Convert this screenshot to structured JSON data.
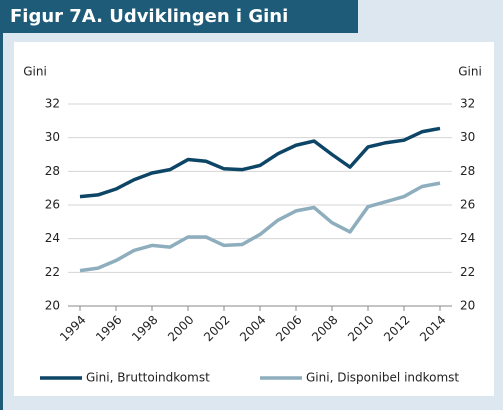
{
  "chart_data": {
    "type": "line",
    "title": "Figur 7A. Udviklingen i Gini",
    "ylabel": "Gini",
    "y2label": "Gini",
    "x": [
      1994,
      1995,
      1996,
      1997,
      1998,
      1999,
      2000,
      2001,
      2002,
      2003,
      2004,
      2005,
      2006,
      2007,
      2008,
      2009,
      2010,
      2011,
      2012,
      2013,
      2014
    ],
    "series": [
      {
        "name": "Gini, Bruttoindkomst",
        "color": "#0d4566",
        "values": [
          26.5,
          26.6,
          26.95,
          27.5,
          27.9,
          28.1,
          28.7,
          28.6,
          28.15,
          28.1,
          28.35,
          29.05,
          29.55,
          29.8,
          29.0,
          28.25,
          29.45,
          29.7,
          29.85,
          30.35,
          30.55
        ]
      },
      {
        "name": "Gini, Disponibel indkomst",
        "color": "#8eaebe",
        "values": [
          22.1,
          22.25,
          22.7,
          23.3,
          23.6,
          23.5,
          24.1,
          24.1,
          23.6,
          23.65,
          24.25,
          25.1,
          25.65,
          25.85,
          24.95,
          24.4,
          25.9,
          26.2,
          26.5,
          27.1,
          27.3
        ]
      }
    ],
    "xlim": [
      1994,
      2014
    ],
    "xticks": [
      1994,
      1996,
      1998,
      2000,
      2002,
      2004,
      2006,
      2008,
      2010,
      2012,
      2014
    ],
    "ylim": [
      20,
      32
    ],
    "yticks": [
      20,
      22,
      24,
      26,
      28,
      30,
      32
    ],
    "y2lim": [
      20,
      32
    ],
    "y2ticks": [
      20,
      22,
      24,
      26,
      28,
      30,
      32
    ],
    "grid": true
  }
}
